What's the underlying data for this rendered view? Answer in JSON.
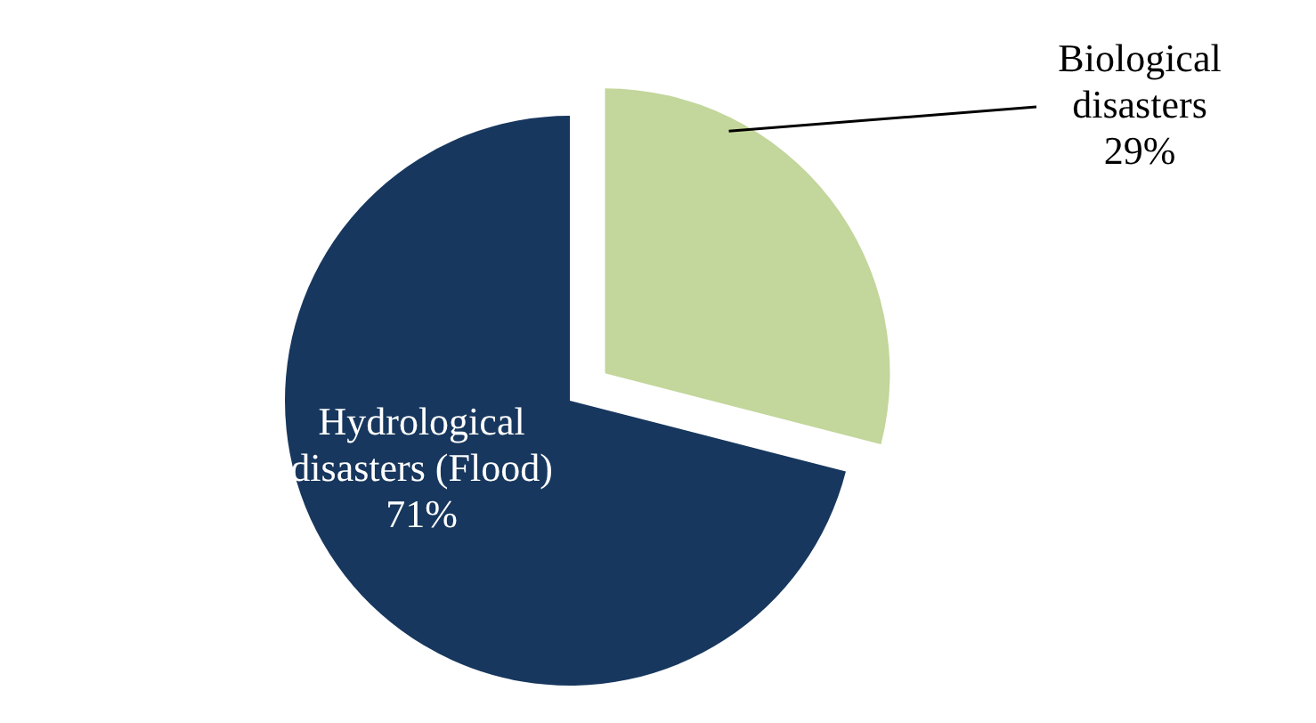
{
  "chart_data": {
    "type": "pie",
    "categories": [
      "Biological disasters",
      "Hydrological disasters (Flood)"
    ],
    "values": [
      29,
      71
    ],
    "colors": [
      "#c3d69b",
      "#17375e"
    ],
    "value_labels": [
      "29%",
      "71%"
    ]
  }
}
